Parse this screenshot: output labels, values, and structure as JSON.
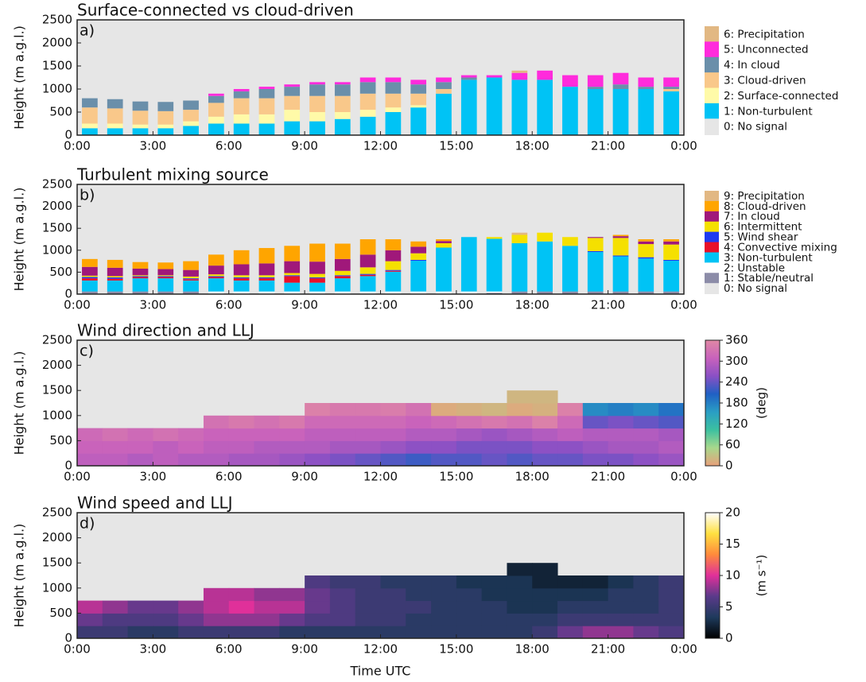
{
  "chart_data": [
    {
      "type": "bar",
      "title": "Surface-connected vs cloud-driven",
      "panel_label": "a)",
      "ylabel": "Height (m a.g.l.)",
      "background": {
        "name": "0: No signal",
        "color": "#e6e6e6"
      },
      "x": [
        0.5,
        1.5,
        2.5,
        3.5,
        4.5,
        5.5,
        6.5,
        7.5,
        8.5,
        9.5,
        10.5,
        11.5,
        12.5,
        13.5,
        14.5,
        15.5,
        16.5,
        17.5,
        18.5,
        19.5,
        20.5,
        21.5,
        22.5,
        23.5
      ],
      "series": [
        {
          "name": "1: Non-turbulent",
          "color": "#00c3f5",
          "values": [
            150,
            150,
            150,
            150,
            200,
            250,
            250,
            250,
            300,
            300,
            350,
            400,
            500,
            600,
            900,
            1200,
            1250,
            1200,
            1200,
            1050,
            1000,
            1000,
            1000,
            950
          ]
        },
        {
          "name": "2: Surface-connected",
          "color": "#fffaa8",
          "values": [
            100,
            100,
            80,
            80,
            100,
            150,
            200,
            200,
            250,
            200,
            150,
            150,
            100,
            50,
            0,
            0,
            0,
            0,
            0,
            0,
            0,
            0,
            0,
            0
          ]
        },
        {
          "name": "3: Cloud-driven",
          "color": "#f9c88a",
          "values": [
            350,
            330,
            300,
            290,
            250,
            300,
            350,
            350,
            300,
            350,
            350,
            350,
            300,
            250,
            100,
            0,
            0,
            0,
            0,
            0,
            0,
            0,
            0,
            50
          ]
        },
        {
          "name": "4: In cloud",
          "color": "#6a8faa",
          "values": [
            200,
            200,
            200,
            200,
            200,
            150,
            150,
            200,
            200,
            250,
            250,
            250,
            250,
            200,
            150,
            50,
            0,
            0,
            0,
            0,
            50,
            100,
            50,
            50
          ]
        },
        {
          "name": "5: Unconnected",
          "color": "#ff2bdc",
          "values": [
            0,
            0,
            0,
            0,
            0,
            50,
            50,
            50,
            50,
            50,
            50,
            100,
            100,
            100,
            100,
            50,
            50,
            150,
            200,
            250,
            250,
            250,
            200,
            200
          ]
        },
        {
          "name": "6: Precipitation",
          "color": "#e2b883",
          "values": [
            0,
            0,
            0,
            0,
            0,
            0,
            0,
            0,
            0,
            0,
            0,
            0,
            0,
            0,
            0,
            0,
            0,
            50,
            0,
            0,
            0,
            0,
            0,
            0
          ]
        }
      ],
      "xlim": [
        0,
        24
      ],
      "xticks": [
        {
          "value": 0,
          "label": "0:00"
        },
        {
          "value": 3,
          "label": "3:00"
        },
        {
          "value": 6,
          "label": "6:00"
        },
        {
          "value": 9,
          "label": "9:00"
        },
        {
          "value": 12,
          "label": "12:00"
        },
        {
          "value": 15,
          "label": "15:00"
        },
        {
          "value": 18,
          "label": "18:00"
        },
        {
          "value": 21,
          "label": "21:00"
        },
        {
          "value": 24,
          "label": "0:00"
        }
      ],
      "ylim": [
        0,
        2500
      ],
      "yticks": [
        0,
        500,
        1000,
        1500,
        2000,
        2500
      ]
    },
    {
      "type": "bar",
      "title": "Turbulent mixing source",
      "panel_label": "b)",
      "ylabel": "Height (m a.g.l.)",
      "background": {
        "name": "0: No signal",
        "color": "#e6e6e6"
      },
      "x": [
        0.5,
        1.5,
        2.5,
        3.5,
        4.5,
        5.5,
        6.5,
        7.5,
        8.5,
        9.5,
        10.5,
        11.5,
        12.5,
        13.5,
        14.5,
        15.5,
        16.5,
        17.5,
        18.5,
        19.5,
        20.5,
        21.5,
        22.5,
        23.5
      ],
      "series": [
        {
          "name": "1: Stable/neutral",
          "color": "#8c8ca8",
          "values": [
            60,
            60,
            60,
            60,
            60,
            0,
            0,
            0,
            0,
            0,
            0,
            0,
            0,
            0,
            0,
            0,
            30,
            60,
            60,
            60,
            60,
            60,
            60,
            60
          ]
        },
        {
          "name": "2: Unstable",
          "color": "#ffffff",
          "values": [
            0,
            0,
            0,
            0,
            0,
            60,
            60,
            60,
            60,
            60,
            60,
            60,
            60,
            60,
            60,
            60,
            30,
            0,
            0,
            0,
            0,
            0,
            0,
            0
          ]
        },
        {
          "name": "3: Non-turbulent",
          "color": "#00c3f5",
          "values": [
            250,
            250,
            300,
            300,
            250,
            300,
            250,
            250,
            200,
            200,
            300,
            350,
            450,
            700,
            1000,
            1240,
            1200,
            1100,
            1140,
            1040,
            900,
            800,
            750,
            700
          ]
        },
        {
          "name": "4: Convective mixing",
          "color": "#e8102a",
          "values": [
            50,
            40,
            30,
            30,
            30,
            30,
            50,
            50,
            150,
            100,
            50,
            30,
            20,
            0,
            0,
            0,
            0,
            0,
            0,
            0,
            0,
            0,
            0,
            0
          ]
        },
        {
          "name": "5: Wind shear",
          "color": "#1e3cf0",
          "values": [
            30,
            30,
            20,
            20,
            20,
            20,
            20,
            20,
            20,
            20,
            20,
            20,
            20,
            20,
            0,
            0,
            0,
            0,
            0,
            0,
            20,
            20,
            30,
            20
          ]
        },
        {
          "name": "6: Intermittent",
          "color": "#f5e000",
          "values": [
            30,
            30,
            20,
            20,
            40,
            40,
            50,
            50,
            50,
            80,
            100,
            150,
            200,
            150,
            100,
            0,
            40,
            190,
            200,
            200,
            300,
            400,
            300,
            350
          ]
        },
        {
          "name": "7: In cloud",
          "color": "#a0187a",
          "values": [
            200,
            190,
            150,
            140,
            150,
            200,
            250,
            270,
            270,
            280,
            270,
            290,
            250,
            150,
            50,
            0,
            0,
            0,
            0,
            0,
            20,
            40,
            60,
            70
          ]
        },
        {
          "name": "8: Cloud-driven",
          "color": "#ffa500",
          "values": [
            180,
            180,
            150,
            150,
            200,
            250,
            320,
            350,
            350,
            410,
            350,
            350,
            250,
            120,
            40,
            0,
            0,
            0,
            0,
            0,
            0,
            30,
            50,
            50
          ]
        },
        {
          "name": "9: Precipitation",
          "color": "#e2b883",
          "values": [
            0,
            0,
            0,
            0,
            0,
            0,
            0,
            0,
            0,
            0,
            0,
            0,
            0,
            0,
            0,
            0,
            0,
            50,
            0,
            0,
            0,
            0,
            0,
            0
          ]
        }
      ],
      "xlim": [
        0,
        24
      ],
      "xticks": [
        {
          "value": 0,
          "label": "0:00"
        },
        {
          "value": 3,
          "label": "3:00"
        },
        {
          "value": 6,
          "label": "6:00"
        },
        {
          "value": 9,
          "label": "9:00"
        },
        {
          "value": 12,
          "label": "12:00"
        },
        {
          "value": 15,
          "label": "15:00"
        },
        {
          "value": 18,
          "label": "18:00"
        },
        {
          "value": 21,
          "label": "21:00"
        },
        {
          "value": 24,
          "label": "0:00"
        }
      ],
      "ylim": [
        0,
        2500
      ],
      "yticks": [
        0,
        500,
        1000,
        1500,
        2000,
        2500
      ]
    },
    {
      "type": "heatmap",
      "title": "Wind direction and LLJ",
      "panel_label": "c)",
      "ylabel": "Height (m a.g.l.)",
      "background": {
        "color": "#e6e6e6"
      },
      "x": [
        0.5,
        1.5,
        2.5,
        3.5,
        4.5,
        5.5,
        6.5,
        7.5,
        8.5,
        9.5,
        10.5,
        11.5,
        12.5,
        13.5,
        14.5,
        15.5,
        16.5,
        17.5,
        18.5,
        19.5,
        20.5,
        21.5,
        22.5,
        23.5
      ],
      "y_edges": [
        0,
        250,
        500,
        750,
        1000,
        1250,
        1500
      ],
      "z": [
        [
          300,
          310,
          320,
          null,
          null,
          null
        ],
        [
          300,
          310,
          330,
          null,
          null,
          null
        ],
        [
          290,
          310,
          320,
          null,
          null,
          null
        ],
        [
          300,
          300,
          330,
          null,
          null,
          null
        ],
        [
          290,
          310,
          320,
          null,
          null,
          null
        ],
        [
          290,
          300,
          310,
          330,
          null,
          null
        ],
        [
          280,
          300,
          310,
          340,
          null,
          null
        ],
        [
          280,
          290,
          310,
          330,
          null,
          null
        ],
        [
          270,
          290,
          310,
          340,
          null,
          null
        ],
        [
          260,
          290,
          300,
          320,
          350,
          null
        ],
        [
          250,
          280,
          300,
          320,
          340,
          null
        ],
        [
          240,
          280,
          300,
          320,
          340,
          null
        ],
        [
          230,
          270,
          300,
          320,
          345,
          null
        ],
        [
          220,
          260,
          290,
          310,
          330,
          null
        ],
        [
          230,
          260,
          290,
          320,
          10,
          null
        ],
        [
          230,
          250,
          280,
          330,
          15,
          null
        ],
        [
          240,
          250,
          270,
          340,
          20,
          null
        ],
        [
          230,
          250,
          280,
          330,
          10,
          20
        ],
        [
          240,
          260,
          290,
          350,
          15,
          20
        ],
        [
          240,
          260,
          300,
          320,
          350,
          null
        ],
        [
          250,
          270,
          290,
          240,
          170,
          null
        ],
        [
          250,
          280,
          290,
          250,
          180,
          null
        ],
        [
          260,
          280,
          290,
          240,
          170,
          null
        ],
        [
          270,
          290,
          280,
          230,
          190,
          null
        ]
      ],
      "colorbar": {
        "label": "(deg)",
        "lim": [
          0,
          360
        ],
        "ticks": [
          0,
          60,
          120,
          180,
          240,
          300,
          360
        ],
        "colors": [
          "#e8a07a",
          "#a8d88c",
          "#3cc0a0",
          "#2a9ec4",
          "#2060c4",
          "#8a50c4",
          "#c862bc",
          "#e088a4"
        ]
      },
      "xlim": [
        0,
        24
      ],
      "xticks": [
        {
          "value": 0,
          "label": "0:00"
        },
        {
          "value": 3,
          "label": "3:00"
        },
        {
          "value": 6,
          "label": "6:00"
        },
        {
          "value": 9,
          "label": "9:00"
        },
        {
          "value": 12,
          "label": "12:00"
        },
        {
          "value": 15,
          "label": "15:00"
        },
        {
          "value": 18,
          "label": "18:00"
        },
        {
          "value": 21,
          "label": "21:00"
        },
        {
          "value": 24,
          "label": "0:00"
        }
      ],
      "ylim": [
        0,
        2500
      ],
      "yticks": [
        0,
        500,
        1000,
        1500,
        2000,
        2500
      ]
    },
    {
      "type": "heatmap",
      "title": "Wind speed and LLJ",
      "panel_label": "d)",
      "ylabel": "Height (m a.g.l.)",
      "xlabel": "Time UTC",
      "background": {
        "color": "#e6e6e6"
      },
      "x": [
        0.5,
        1.5,
        2.5,
        3.5,
        4.5,
        5.5,
        6.5,
        7.5,
        8.5,
        9.5,
        10.5,
        11.5,
        12.5,
        13.5,
        14.5,
        15.5,
        16.5,
        17.5,
        18.5,
        19.5,
        20.5,
        21.5,
        22.5,
        23.5
      ],
      "y_edges": [
        0,
        250,
        500,
        750,
        1000,
        1250,
        1500
      ],
      "z": [
        [
          5,
          7,
          9,
          null,
          null,
          null
        ],
        [
          5,
          6,
          8,
          null,
          null,
          null
        ],
        [
          4,
          6,
          7,
          null,
          null,
          null
        ],
        [
          4,
          6,
          7,
          null,
          null,
          null
        ],
        [
          5,
          7,
          8,
          null,
          null,
          null
        ],
        [
          5,
          8,
          9,
          9,
          null,
          null
        ],
        [
          5,
          8,
          10,
          9,
          null,
          null
        ],
        [
          5,
          8,
          9,
          8,
          null,
          null
        ],
        [
          4,
          7,
          9,
          8,
          null,
          null
        ],
        [
          4,
          6,
          7,
          7,
          6,
          null
        ],
        [
          4,
          6,
          6,
          6,
          5,
          null
        ],
        [
          4,
          5,
          5,
          5,
          5,
          null
        ],
        [
          4,
          5,
          5,
          5,
          4,
          null
        ],
        [
          4,
          4,
          5,
          4,
          4,
          null
        ],
        [
          4,
          4,
          4,
          4,
          4,
          null
        ],
        [
          4,
          4,
          4,
          4,
          3,
          null
        ],
        [
          4,
          4,
          4,
          3,
          3,
          null
        ],
        [
          4,
          4,
          3,
          3,
          3,
          2
        ],
        [
          5,
          4,
          3,
          3,
          2,
          2
        ],
        [
          7,
          5,
          4,
          3,
          2,
          null
        ],
        [
          8,
          5,
          4,
          3,
          2,
          null
        ],
        [
          8,
          5,
          4,
          4,
          3,
          null
        ],
        [
          7,
          5,
          4,
          4,
          4,
          null
        ],
        [
          6,
          5,
          5,
          5,
          5,
          null
        ]
      ],
      "colorbar": {
        "label": "(m s⁻¹)",
        "lim": [
          0,
          20
        ],
        "ticks": [
          0,
          5,
          10,
          15,
          20
        ],
        "colors": [
          "#000000",
          "#1e3a5c",
          "#5a3a8a",
          "#e0309a",
          "#ff8a3c",
          "#ffe040",
          "#ffffff"
        ]
      },
      "xlim": [
        0,
        24
      ],
      "xticks": [
        {
          "value": 0,
          "label": "0:00"
        },
        {
          "value": 3,
          "label": "3:00"
        },
        {
          "value": 6,
          "label": "6:00"
        },
        {
          "value": 9,
          "label": "9:00"
        },
        {
          "value": 12,
          "label": "12:00"
        },
        {
          "value": 15,
          "label": "15:00"
        },
        {
          "value": 18,
          "label": "18:00"
        },
        {
          "value": 21,
          "label": "21:00"
        },
        {
          "value": 24,
          "label": "0:00"
        }
      ],
      "ylim": [
        0,
        2500
      ],
      "yticks": [
        0,
        500,
        1000,
        1500,
        2000,
        2500
      ]
    }
  ]
}
